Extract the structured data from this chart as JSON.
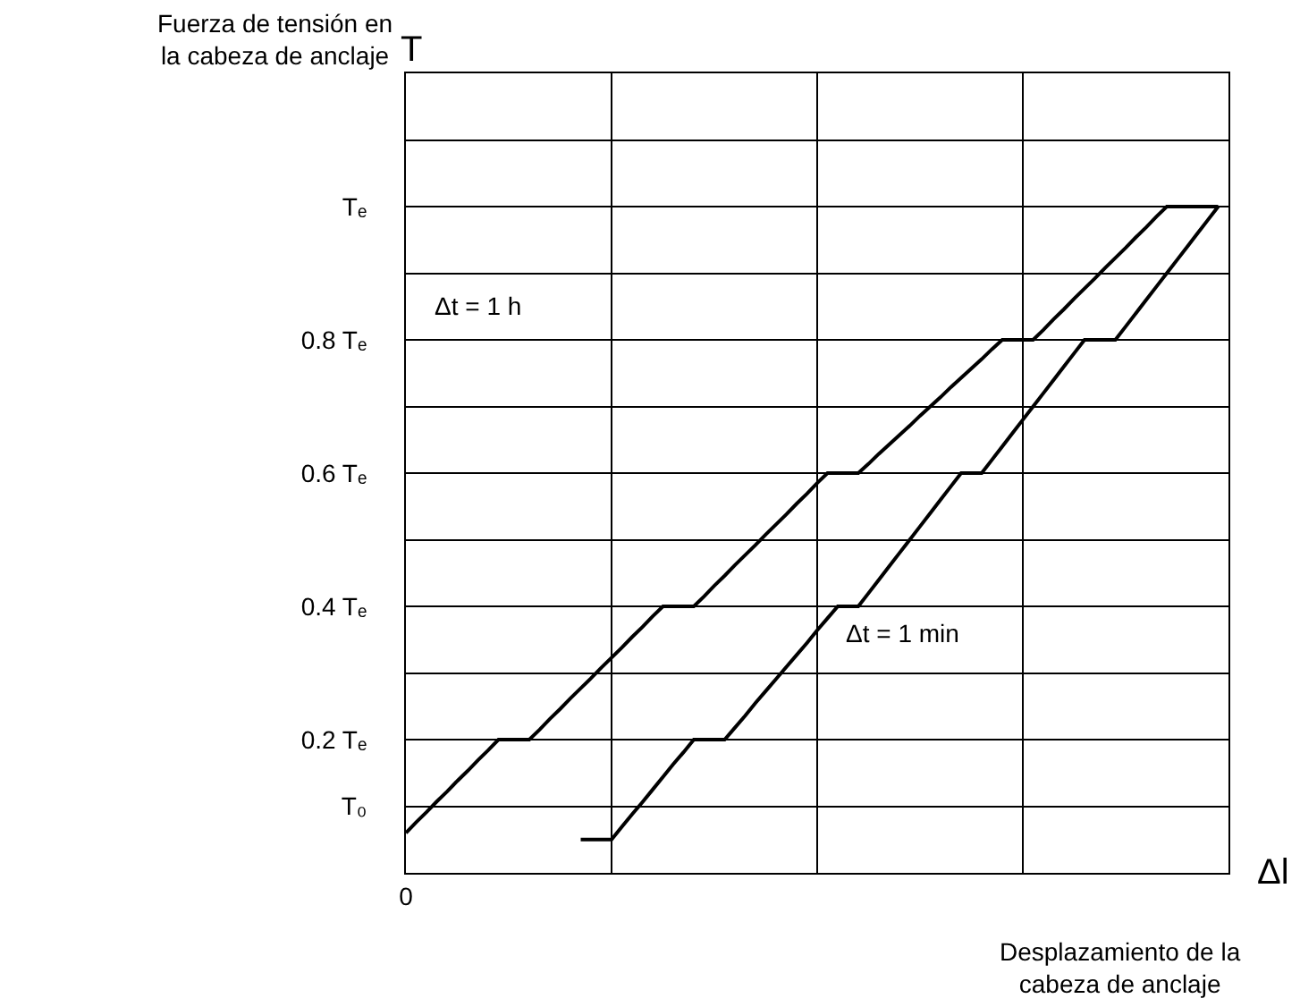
{
  "chart_data": {
    "type": "line",
    "ylabel": "T",
    "xlabel": "Δl",
    "categories": [
      "0",
      null,
      null,
      null,
      null,
      null,
      null,
      null,
      null,
      null,
      null,
      null,
      null,
      null,
      null,
      null,
      null,
      null,
      null,
      null,
      null,
      null,
      null,
      null,
      null,
      null,
      null,
      null,
      null,
      null,
      null,
      null,
      null,
      null,
      null,
      null,
      null,
      null,
      null,
      null,
      null,
      null,
      null,
      null,
      null,
      null,
      null,
      null,
      null,
      null,
      null,
      null,
      null,
      null,
      null,
      null,
      null,
      null,
      null,
      null,
      null,
      null,
      null,
      null,
      null,
      null,
      null,
      null,
      null,
      null,
      null,
      null,
      null,
      null,
      null,
      null,
      null,
      null,
      null,
      null,
      null
    ],
    "ylim": [
      0,
      1.2
    ],
    "yticks": [
      {
        "value": 0.1,
        "label": "T₀"
      },
      {
        "value": 0.2,
        "label": "0.2 Tₑ"
      },
      {
        "value": 0.3,
        "label": null
      },
      {
        "value": 0.4,
        "label": "0.4 Tₑ"
      },
      {
        "value": 0.5,
        "label": null
      },
      {
        "value": 0.6,
        "label": "0.6 Tₑ"
      },
      {
        "value": 0.7,
        "label": null
      },
      {
        "value": 0.8,
        "label": "0.8 Tₑ"
      },
      {
        "value": 0.9,
        "label": null
      },
      {
        "value": 1.0,
        "label": "Tₑ"
      },
      {
        "value": 1.1,
        "label": null
      }
    ],
    "grid": true,
    "marker": "none",
    "line_style": "solid",
    "series": [
      {
        "color": "#000000",
        "values": [
          0.06,
          0.076,
          0.091,
          0.107,
          0.122,
          0.138,
          0.153,
          0.169,
          0.184,
          0.2,
          0.2,
          0.2,
          0.2,
          0.215,
          0.231,
          0.246,
          0.262,
          0.277,
          0.292,
          0.308,
          0.323,
          0.338,
          0.354,
          0.369,
          0.385,
          0.4,
          0.4,
          0.4,
          0.4,
          0.415,
          0.431,
          0.446,
          0.462,
          0.477,
          0.492,
          0.508,
          0.523,
          0.538,
          0.554,
          0.569,
          0.585,
          0.6,
          0.6,
          0.6,
          0.6,
          0.614,
          0.629,
          0.643,
          0.657,
          0.671,
          0.686,
          0.7,
          0.714,
          0.729,
          0.743,
          0.757,
          0.771,
          0.786,
          0.8,
          0.8,
          0.8,
          0.8,
          0.815,
          0.831,
          0.846,
          0.862,
          0.877,
          0.892,
          0.908,
          0.923,
          0.938,
          0.954,
          0.969,
          0.985,
          1,
          1,
          1,
          1,
          1,
          1,
          null
        ]
      },
      {
        "color": "#000000",
        "values": [
          null,
          null,
          null,
          null,
          null,
          null,
          null,
          null,
          null,
          null,
          null,
          null,
          null,
          null,
          null,
          null,
          null,
          0.05,
          0.05,
          0.05,
          0.05,
          0.069,
          0.088,
          0.106,
          0.125,
          0.144,
          0.163,
          0.181,
          0.2,
          0.2,
          0.2,
          0.2,
          0.218,
          0.236,
          0.255,
          0.273,
          0.291,
          0.309,
          0.327,
          0.345,
          0.364,
          0.382,
          0.4,
          0.4,
          0.4,
          0.42,
          0.44,
          0.46,
          0.48,
          0.5,
          0.52,
          0.54,
          0.56,
          0.58,
          0.6,
          0.6,
          0.6,
          0.62,
          0.64,
          0.66,
          0.68,
          0.7,
          0.72,
          0.74,
          0.76,
          0.78,
          0.8,
          0.8,
          0.8,
          0.8,
          0.82,
          0.84,
          0.86,
          0.88,
          0.9,
          0.92,
          0.94,
          0.96,
          0.98,
          1,
          null
        ]
      }
    ],
    "annotations": [
      "Δt = 1 h",
      "Δt = 1 min",
      "Fuerza de tensión en\nla cabeza de anclaje",
      "Desplazamiento de la\ncabeza de anclaje"
    ]
  }
}
